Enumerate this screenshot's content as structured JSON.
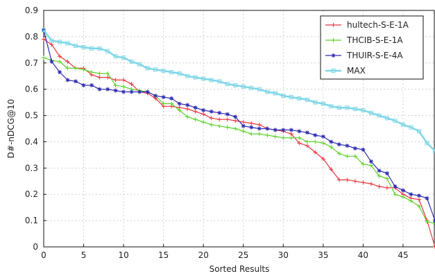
{
  "chart_data": {
    "type": "line",
    "xlabel": "Sorted Results",
    "ylabel": "D#-nDCG@10",
    "xlim": [
      0,
      49
    ],
    "ylim": [
      0,
      0.9
    ],
    "xticks": [
      0,
      5,
      10,
      15,
      20,
      25,
      30,
      35,
      40,
      45
    ],
    "yticks": [
      0,
      0.1,
      0.2,
      0.3,
      0.4,
      0.5,
      0.6,
      0.7,
      0.8,
      0.9
    ],
    "xtick_labels": [
      "0",
      "5",
      "10",
      "15",
      "20",
      "25",
      "30",
      "35",
      "40",
      "45"
    ],
    "ytick_labels": [
      "0",
      "0.1",
      "0.2",
      "0.3",
      "0.4",
      "0.5",
      "0.6",
      "0.7",
      "0.8",
      "0.9"
    ],
    "grid": true,
    "legend_position": "top-right",
    "series": [
      {
        "name": "hultech-S-E-1A",
        "color": "#e8343f",
        "marker": "plus",
        "values": [
          0.79,
          0.77,
          0.725,
          0.705,
          0.68,
          0.68,
          0.655,
          0.645,
          0.645,
          0.635,
          0.635,
          0.62,
          0.59,
          0.585,
          0.565,
          0.535,
          0.535,
          0.53,
          0.525,
          0.515,
          0.505,
          0.49,
          0.485,
          0.485,
          0.48,
          0.475,
          0.47,
          0.465,
          0.45,
          0.445,
          0.44,
          0.43,
          0.395,
          0.385,
          0.36,
          0.335,
          0.295,
          0.255,
          0.255,
          0.25,
          0.245,
          0.24,
          0.23,
          0.225,
          0.225,
          0.2,
          0.185,
          0.18,
          0.1,
          0.0
        ]
      },
      {
        "name": "THCIB-S-E-1A",
        "color": "#5ad12a",
        "marker": "plus",
        "values": [
          0.72,
          0.71,
          0.705,
          0.68,
          0.68,
          0.675,
          0.665,
          0.66,
          0.66,
          0.615,
          0.61,
          0.6,
          0.595,
          0.59,
          0.575,
          0.545,
          0.545,
          0.52,
          0.495,
          0.485,
          0.475,
          0.465,
          0.46,
          0.455,
          0.45,
          0.44,
          0.43,
          0.43,
          0.425,
          0.42,
          0.415,
          0.415,
          0.415,
          0.4,
          0.4,
          0.395,
          0.38,
          0.355,
          0.345,
          0.345,
          0.315,
          0.31,
          0.27,
          0.26,
          0.2,
          0.19,
          0.175,
          0.155,
          0.095,
          0.09
        ]
      },
      {
        "name": "THUIR-S-E-4A",
        "color": "#2d2ab3",
        "marker": "star",
        "values": [
          0.825,
          0.705,
          0.665,
          0.635,
          0.63,
          0.615,
          0.615,
          0.6,
          0.6,
          0.595,
          0.59,
          0.59,
          0.59,
          0.59,
          0.575,
          0.57,
          0.565,
          0.545,
          0.54,
          0.53,
          0.52,
          0.515,
          0.51,
          0.505,
          0.495,
          0.46,
          0.455,
          0.45,
          0.45,
          0.445,
          0.445,
          0.445,
          0.44,
          0.435,
          0.425,
          0.42,
          0.4,
          0.39,
          0.385,
          0.375,
          0.37,
          0.325,
          0.29,
          0.28,
          0.23,
          0.215,
          0.2,
          0.195,
          0.185,
          0.1
        ]
      },
      {
        "name": "MAX",
        "color": "#7fd6e6",
        "marker": "square",
        "values": [
          0.825,
          0.785,
          0.78,
          0.775,
          0.765,
          0.76,
          0.755,
          0.755,
          0.745,
          0.725,
          0.72,
          0.705,
          0.695,
          0.68,
          0.675,
          0.67,
          0.665,
          0.66,
          0.65,
          0.645,
          0.64,
          0.635,
          0.63,
          0.62,
          0.615,
          0.61,
          0.605,
          0.6,
          0.59,
          0.585,
          0.575,
          0.57,
          0.565,
          0.56,
          0.55,
          0.545,
          0.535,
          0.53,
          0.53,
          0.525,
          0.52,
          0.51,
          0.5,
          0.49,
          0.48,
          0.465,
          0.455,
          0.44,
          0.395,
          0.365
        ]
      }
    ]
  }
}
